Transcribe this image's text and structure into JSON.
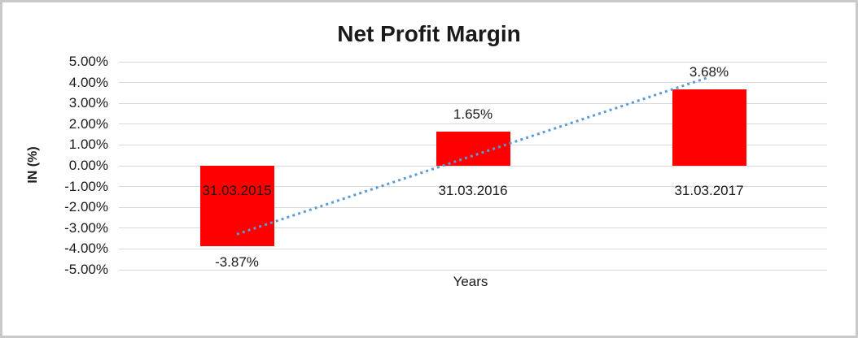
{
  "frame": {
    "background": "#FFFFFF",
    "border_color": "#C9C9C9"
  },
  "chart_data": {
    "type": "bar",
    "title": "Net Profit Margin",
    "xlabel": "Years",
    "ylabel": "IN (%)",
    "categories": [
      "31.03.2015",
      "31.03.2016",
      "31.03.2017"
    ],
    "values": [
      -3.87,
      1.65,
      3.68
    ],
    "data_labels": [
      "-3.87%",
      "1.65%",
      "3.68%"
    ],
    "ylim": [
      -5,
      5
    ],
    "ytick_step": 1,
    "ytick_labels": [
      "5.00%",
      "4.00%",
      "3.00%",
      "2.00%",
      "1.00%",
      "0.00%",
      "-1.00%",
      "-2.00%",
      "-3.00%",
      "-4.00%",
      "-5.00%"
    ],
    "grid": true,
    "legend": "none",
    "bar_color": "#FF0000",
    "gridline_color": "#D9D9D9",
    "text_color": "#1A1A1A",
    "trendline": {
      "type": "linear",
      "style": "dotted",
      "color": "#5B9BD5",
      "start_value": -3.29,
      "end_value": 4.26
    }
  }
}
